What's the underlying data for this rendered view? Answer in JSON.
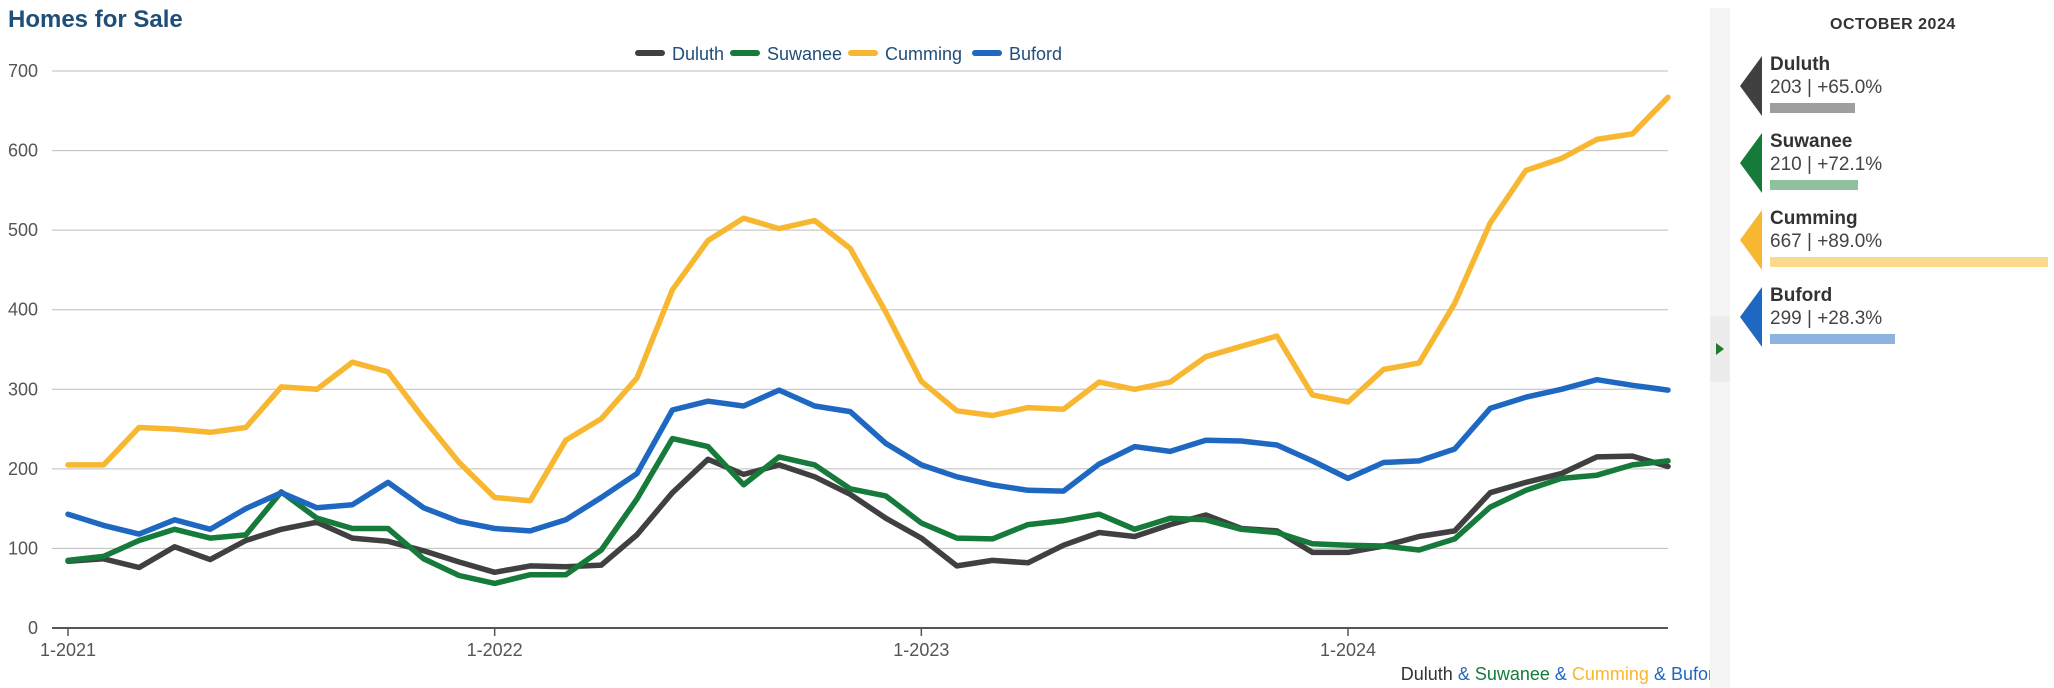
{
  "title": "Homes for Sale",
  "footer": {
    "parts": [
      "Duluth",
      " & ",
      "Suwanee",
      " & ",
      "Cumming",
      " & ",
      "Buford"
    ]
  },
  "side_panel": {
    "heading": "OCTOBER 2024",
    "items": [
      {
        "name": "Duluth",
        "stat": "203 | +65.0%",
        "color": "#404040",
        "bar_color": "#9e9e9e",
        "value": 203
      },
      {
        "name": "Suwanee",
        "stat": "210 | +72.1%",
        "color": "#157a3a",
        "bar_color": "#8fc0a0",
        "value": 210
      },
      {
        "name": "Cumming",
        "stat": "667 | +89.0%",
        "color": "#f7b731",
        "bar_color": "#fbd98d",
        "value": 667
      },
      {
        "name": "Buford",
        "stat": "299 | +28.3%",
        "color": "#1f68c1",
        "bar_color": "#8fb3e0",
        "value": 299
      }
    ]
  },
  "chart_data": {
    "type": "line",
    "title": "Homes for Sale",
    "x_start": "2021-01",
    "x_ticks": [
      "1-2021",
      "1-2022",
      "1-2023",
      "1-2024"
    ],
    "y_ticks": [
      0,
      100,
      200,
      300,
      400,
      500,
      600,
      700
    ],
    "ylim": [
      0,
      700
    ],
    "grid": true,
    "legend": "top-center",
    "series": [
      {
        "name": "Duluth",
        "color": "#404040",
        "values": [
          84,
          87,
          76,
          102,
          86,
          110,
          124,
          133,
          113,
          109,
          97,
          83,
          70,
          78,
          77,
          79,
          117,
          170,
          212,
          193,
          205,
          190,
          168,
          138,
          113,
          78,
          85,
          82,
          104,
          120,
          115,
          130,
          142,
          125,
          122,
          95,
          95,
          103,
          115,
          122,
          170,
          183,
          194,
          215,
          216,
          203
        ]
      },
      {
        "name": "Suwanee",
        "color": "#157a3a",
        "values": [
          85,
          90,
          110,
          124,
          113,
          117,
          171,
          138,
          125,
          125,
          87,
          66,
          56,
          67,
          67,
          98,
          162,
          238,
          228,
          180,
          215,
          205,
          175,
          166,
          132,
          113,
          112,
          130,
          135,
          143,
          124,
          138,
          136,
          124,
          120,
          106,
          104,
          103,
          98,
          112,
          152,
          173,
          188,
          192,
          205,
          210
        ]
      },
      {
        "name": "Cumming",
        "color": "#f7b731",
        "values": [
          205,
          205,
          252,
          250,
          246,
          252,
          303,
          300,
          334,
          322,
          263,
          208,
          164,
          160,
          236,
          263,
          314,
          425,
          487,
          515,
          502,
          512,
          477,
          397,
          310,
          273,
          267,
          277,
          275,
          309,
          300,
          309,
          341,
          354,
          367,
          293,
          284,
          325,
          333,
          408,
          509,
          575,
          590,
          614,
          621,
          667
        ]
      },
      {
        "name": "Buford",
        "color": "#1f68c1",
        "values": [
          143,
          129,
          118,
          136,
          124,
          150,
          170,
          151,
          155,
          183,
          151,
          134,
          125,
          122,
          136,
          164,
          194,
          274,
          285,
          279,
          299,
          279,
          272,
          232,
          205,
          190,
          180,
          173,
          172,
          206,
          228,
          222,
          236,
          235,
          230,
          210,
          188,
          208,
          210,
          225,
          276,
          290,
          300,
          312,
          305,
          299
        ]
      }
    ]
  }
}
